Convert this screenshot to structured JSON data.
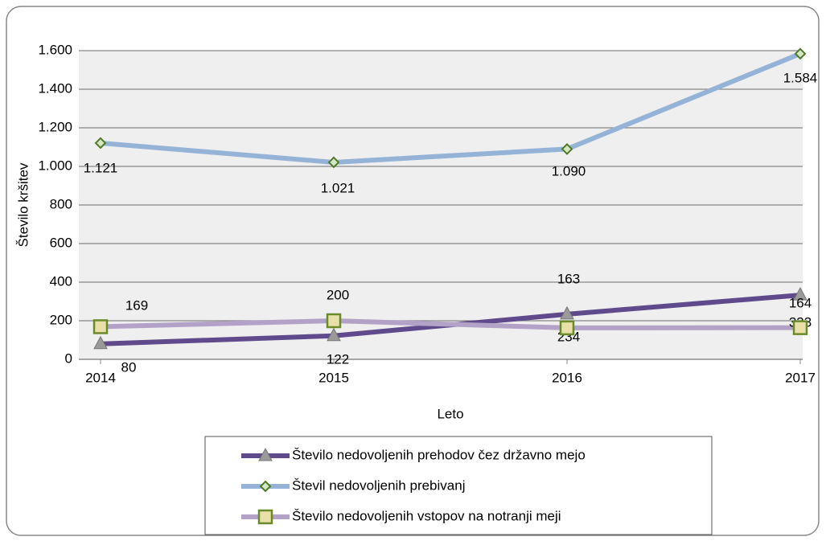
{
  "chart_data": {
    "type": "line",
    "ylabel": "Število kršitev",
    "xlabel": "Leto",
    "x": [
      2014,
      2015,
      2016,
      2017
    ],
    "xlim": [
      2014,
      2017
    ],
    "xticks": [
      2014,
      2015,
      2016,
      2017
    ],
    "ylim": [
      0,
      1600
    ],
    "yticks": [
      0,
      200,
      400,
      600,
      800,
      {
        "value": 1000,
        "label": "1.000"
      },
      {
        "value": 1200,
        "label": "1.200"
      },
      {
        "value": 1400,
        "label": "1.400"
      },
      {
        "value": 1600,
        "label": "1.600"
      }
    ],
    "grid": true,
    "series": [
      {
        "name": "Število nedovoljenih prehodov čez državno mejo",
        "color": "#5f4b8b",
        "marker": "triangle",
        "values": [
          80,
          122,
          234,
          333
        ]
      },
      {
        "name": "Števil nedovoljenih prebivanj",
        "color": "#95b3d7",
        "marker": "diamond",
        "values": [
          1121,
          1021,
          1090,
          1584
        ],
        "value_labels": [
          "1.121",
          "1.021",
          "1.090",
          "1.584"
        ]
      },
      {
        "name": "Število nedovoljenih vstopov na notranji meji",
        "color": "#b3a2c7",
        "marker": "square",
        "values": [
          169,
          200,
          163,
          164
        ]
      }
    ]
  }
}
